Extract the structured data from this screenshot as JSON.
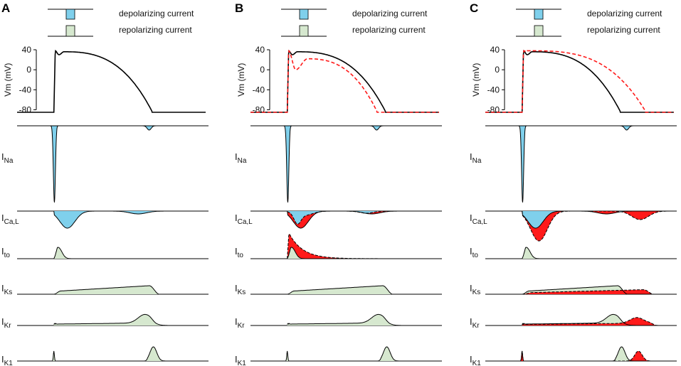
{
  "colors": {
    "depolarizing": "#7fd0ec",
    "repolarizing": "#d6e8cf",
    "highlight": "#ff1a1a",
    "trace": "#000000",
    "dashed": "#ff1a1a"
  },
  "legend": {
    "depolarizing_label": "depolarizing current",
    "repolarizing_label": "repolarizing current"
  },
  "axis": {
    "ylabel": "Vm (mV)",
    "ticks": [
      "40",
      "0",
      "-40",
      "-80"
    ]
  },
  "currents": [
    {
      "main": "I",
      "sub": "Na"
    },
    {
      "main": "I",
      "sub": "Ca,L"
    },
    {
      "main": "I",
      "sub": "to"
    },
    {
      "main": "I",
      "sub": "Ks"
    },
    {
      "main": "I",
      "sub": "Kr"
    },
    {
      "main": "I",
      "sub": "K1"
    }
  ],
  "panels": [
    {
      "label": "A",
      "variant": "control"
    },
    {
      "label": "B",
      "variant": "ito_increase"
    },
    {
      "label": "C",
      "variant": "ik_decrease"
    }
  ]
}
